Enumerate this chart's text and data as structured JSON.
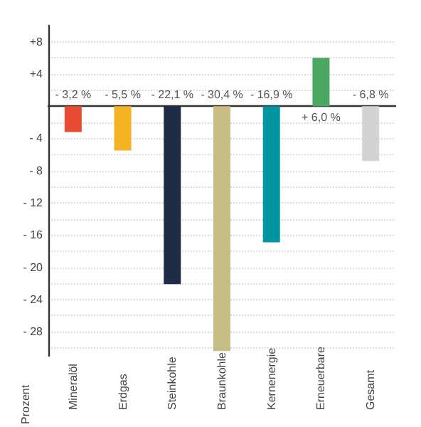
{
  "chart_data": {
    "type": "bar",
    "ylabel": "Prozent",
    "categories": [
      "Mineralöl",
      "Erdgas",
      "Steinkohle",
      "Braunkohle",
      "Kernenergie",
      "Erneuerbare",
      "Gesamt"
    ],
    "values": [
      -3.2,
      -5.5,
      -22.1,
      -30.4,
      -16.9,
      6.0,
      -6.8
    ],
    "colors": [
      "#e84c33",
      "#f3b323",
      "#1e2d45",
      "#c7bd84",
      "#0095a0",
      "#4aa860",
      "#d3d3d3"
    ],
    "value_labels": [
      "- 3,2 %",
      "- 5,5 %",
      "- 22,1 %",
      "- 30,4 %",
      "- 16,9 %",
      "+ 6,0 %",
      "- 6,8 %"
    ],
    "ylim": [
      -31,
      10
    ],
    "yticks": [
      {
        "value": 8,
        "label": "+8"
      },
      {
        "value": 6,
        "label": null
      },
      {
        "value": 4,
        "label": "+4"
      },
      {
        "value": 2,
        "label": null
      },
      {
        "value": 0,
        "label": null
      },
      {
        "value": -2,
        "label": null
      },
      {
        "value": -4,
        "label": "- 4"
      },
      {
        "value": -6,
        "label": null
      },
      {
        "value": -8,
        "label": "- 8"
      },
      {
        "value": -10,
        "label": null
      },
      {
        "value": -12,
        "label": "- 12"
      },
      {
        "value": -14,
        "label": null
      },
      {
        "value": -16,
        "label": "- 16"
      },
      {
        "value": -18,
        "label": null
      },
      {
        "value": -20,
        "label": "- 20"
      },
      {
        "value": -22,
        "label": null
      },
      {
        "value": -24,
        "label": "- 24"
      },
      {
        "value": -26,
        "label": null
      },
      {
        "value": -28,
        "label": "- 28"
      },
      {
        "value": -30,
        "label": null
      }
    ],
    "grid": "y"
  }
}
